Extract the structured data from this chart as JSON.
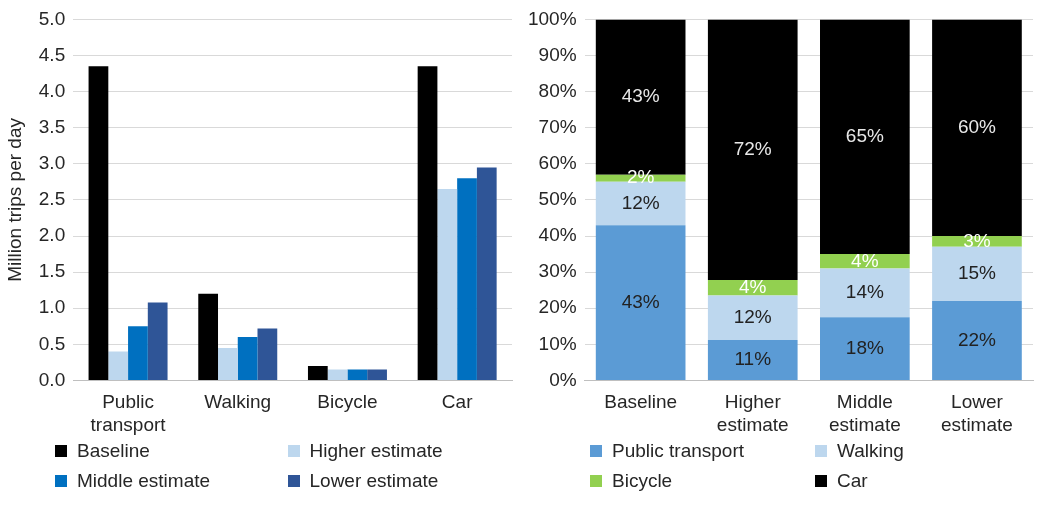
{
  "chart_data": [
    {
      "type": "bar",
      "ylabel": "Million trips per day",
      "categories": [
        "Public transport",
        "Walking",
        "Bicycle",
        "Car"
      ],
      "series": [
        {
          "name": "Baseline",
          "color": "#000000",
          "values": [
            4.35,
            1.2,
            0.2,
            4.35
          ]
        },
        {
          "name": "Higher estimate",
          "color": "#bdd7ee",
          "values": [
            0.4,
            0.45,
            0.15,
            2.65
          ]
        },
        {
          "name": "Middle estimate",
          "color": "#0070c0",
          "values": [
            0.75,
            0.6,
            0.15,
            2.8
          ]
        },
        {
          "name": "Lower estimate",
          "color": "#2f5597",
          "values": [
            1.08,
            0.72,
            0.15,
            2.95
          ]
        }
      ],
      "ylim": [
        0,
        5
      ],
      "yticks": [
        {
          "value": 0,
          "label": "0.0"
        },
        {
          "value": 0.5,
          "label": "0.5"
        },
        {
          "value": 1,
          "label": "1.0"
        },
        {
          "value": 1.5,
          "label": "1.5"
        },
        {
          "value": 2,
          "label": "2.0"
        },
        {
          "value": 2.5,
          "label": "2.5"
        },
        {
          "value": 3,
          "label": "3.0"
        },
        {
          "value": 3.5,
          "label": "3.5"
        },
        {
          "value": 4,
          "label": "4.0"
        },
        {
          "value": 4.5,
          "label": "4.5"
        },
        {
          "value": 5,
          "label": "5.0"
        }
      ],
      "grid": "y",
      "legend": "bottom"
    },
    {
      "type": "bar",
      "stacked": true,
      "categories": [
        "Baseline",
        "Higher estimate",
        "Middle estimate",
        "Lower estimate"
      ],
      "series": [
        {
          "name": "Public transport",
          "color": "#5b9bd5",
          "values": [
            43,
            11.2,
            17.5,
            22
          ],
          "value_labels": [
            "43%",
            "11%",
            "18%",
            "22%"
          ]
        },
        {
          "name": "Walking",
          "color": "#bdd7ee",
          "values": [
            12,
            12.3,
            13.5,
            15
          ],
          "value_labels": [
            "12%",
            "12%",
            "14%",
            "15%"
          ]
        },
        {
          "name": "Bicycle",
          "color": "#92d050",
          "values": [
            2,
            4.3,
            4,
            3
          ],
          "value_labels": [
            "2%",
            "4%",
            "4%",
            "3%"
          ]
        },
        {
          "name": "Car",
          "color": "#000000",
          "values": [
            43,
            72.2,
            65,
            60
          ],
          "value_labels": [
            "43%",
            "72%",
            "65%",
            "60%"
          ]
        }
      ],
      "ylim": [
        0,
        100
      ],
      "yticks": [
        {
          "value": 0,
          "label": "0%"
        },
        {
          "value": 10,
          "label": "10%"
        },
        {
          "value": 20,
          "label": "20%"
        },
        {
          "value": 30,
          "label": "30%"
        },
        {
          "value": 40,
          "label": "40%"
        },
        {
          "value": 50,
          "label": "50%"
        },
        {
          "value": 60,
          "label": "60%"
        },
        {
          "value": 70,
          "label": "70%"
        },
        {
          "value": 80,
          "label": "80%"
        },
        {
          "value": 90,
          "label": "90%"
        },
        {
          "value": 100,
          "label": "100%"
        }
      ],
      "grid": "y",
      "legend": "bottom"
    }
  ]
}
